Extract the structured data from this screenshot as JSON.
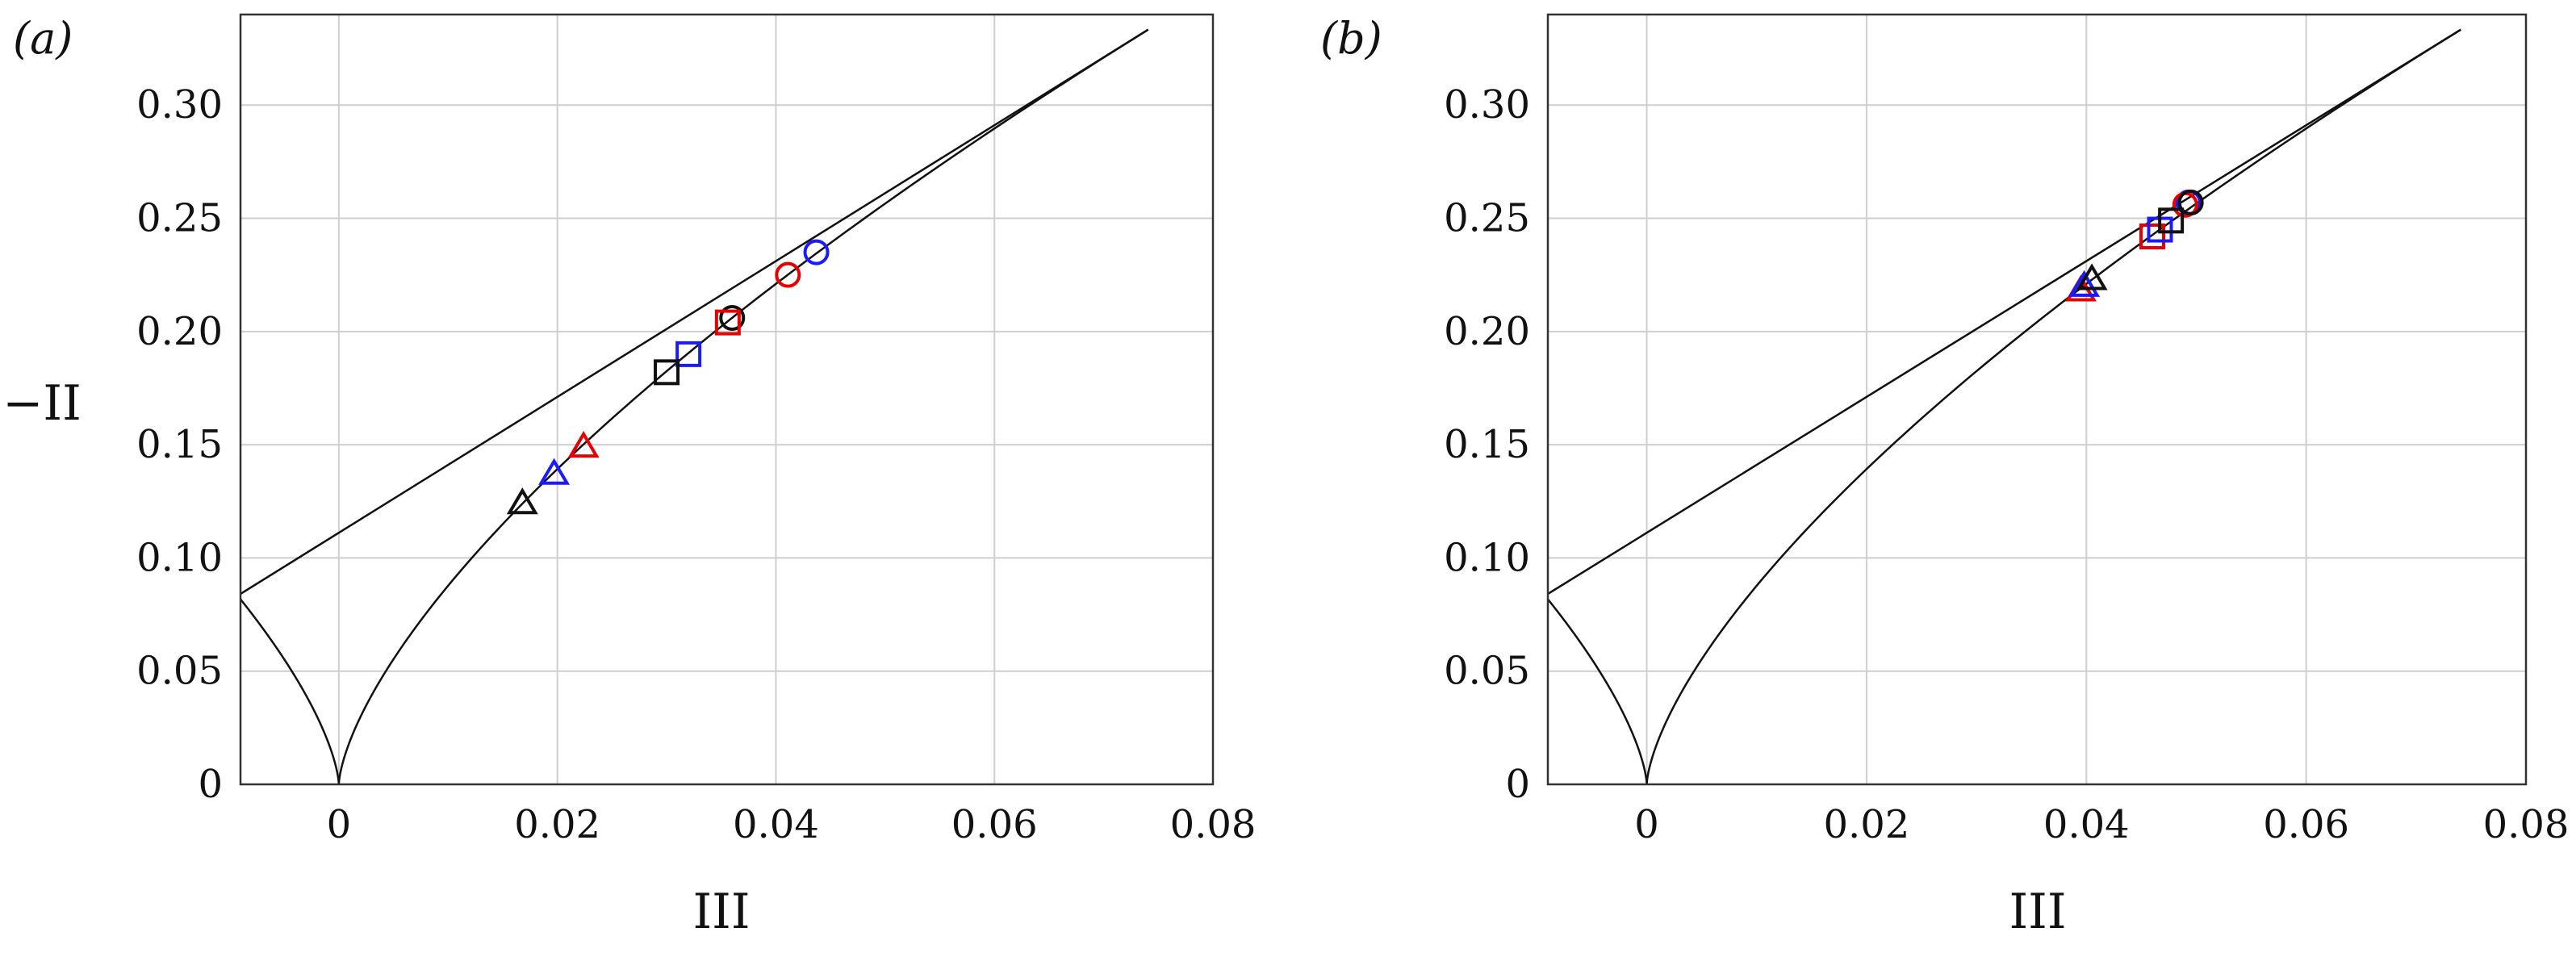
{
  "chart_data": [
    {
      "type": "scatter",
      "panel_label": "(a)",
      "xlabel": "III",
      "ylabel": "−II",
      "xlim": [
        -0.009,
        0.08
      ],
      "ylim": [
        0,
        0.34
      ],
      "x_ticks": [
        "0",
        "0.02",
        "0.04",
        "0.06",
        "0.08"
      ],
      "x_tick_values": [
        0,
        0.02,
        0.04,
        0.06,
        0.08
      ],
      "y_ticks": [
        "0",
        "0.05",
        "0.10",
        "0.15",
        "0.20",
        "0.25",
        "0.30"
      ],
      "y_tick_values": [
        0,
        0.05,
        0.1,
        0.15,
        0.2,
        0.25,
        0.3
      ],
      "grid": true,
      "points": [
        {
          "x": 0.0437,
          "y": 0.235,
          "marker": "circle",
          "color": "#1a1aff"
        },
        {
          "x": 0.0411,
          "y": 0.225,
          "marker": "circle",
          "color": "#e60000"
        },
        {
          "x": 0.036,
          "y": 0.206,
          "marker": "circle",
          "color": "#111111"
        },
        {
          "x": 0.0356,
          "y": 0.204,
          "marker": "square",
          "color": "#e60000"
        },
        {
          "x": 0.032,
          "y": 0.19,
          "marker": "square",
          "color": "#1a1aff"
        },
        {
          "x": 0.03,
          "y": 0.182,
          "marker": "square",
          "color": "#111111"
        },
        {
          "x": 0.0224,
          "y": 0.149,
          "marker": "triangle",
          "color": "#e60000"
        },
        {
          "x": 0.0197,
          "y": 0.137,
          "marker": "triangle",
          "color": "#1a1aff"
        },
        {
          "x": 0.0168,
          "y": 0.124,
          "marker": "triangle",
          "color": "#111111"
        }
      ]
    },
    {
      "type": "scatter",
      "panel_label": "(b)",
      "xlabel": "III",
      "ylabel": "",
      "xlim": [
        -0.009,
        0.08
      ],
      "ylim": [
        0,
        0.34
      ],
      "x_ticks": [
        "0",
        "0.02",
        "0.04",
        "0.06",
        "0.08"
      ],
      "x_tick_values": [
        0,
        0.02,
        0.04,
        0.06,
        0.08
      ],
      "y_ticks": [
        "0",
        "0.05",
        "0.10",
        "0.15",
        "0.20",
        "0.25",
        "0.30"
      ],
      "y_tick_values": [
        0,
        0.05,
        0.1,
        0.15,
        0.2,
        0.25,
        0.3
      ],
      "grid": true,
      "points": [
        {
          "x": 0.0493,
          "y": 0.257,
          "marker": "circle",
          "color": "#1a1aff"
        },
        {
          "x": 0.049,
          "y": 0.256,
          "marker": "circle",
          "color": "#e60000"
        },
        {
          "x": 0.0495,
          "y": 0.257,
          "marker": "circle",
          "color": "#111111"
        },
        {
          "x": 0.046,
          "y": 0.242,
          "marker": "square",
          "color": "#e60000"
        },
        {
          "x": 0.0467,
          "y": 0.245,
          "marker": "square",
          "color": "#1a1aff"
        },
        {
          "x": 0.0477,
          "y": 0.249,
          "marker": "square",
          "color": "#111111"
        },
        {
          "x": 0.0395,
          "y": 0.218,
          "marker": "triangle",
          "color": "#e60000"
        },
        {
          "x": 0.0398,
          "y": 0.22,
          "marker": "triangle",
          "color": "#1a1aff"
        },
        {
          "x": 0.0405,
          "y": 0.223,
          "marker": "triangle",
          "color": "#111111"
        }
      ]
    }
  ],
  "colors": {
    "red": "#e60000",
    "blue": "#1a1aff",
    "black": "#111111"
  }
}
